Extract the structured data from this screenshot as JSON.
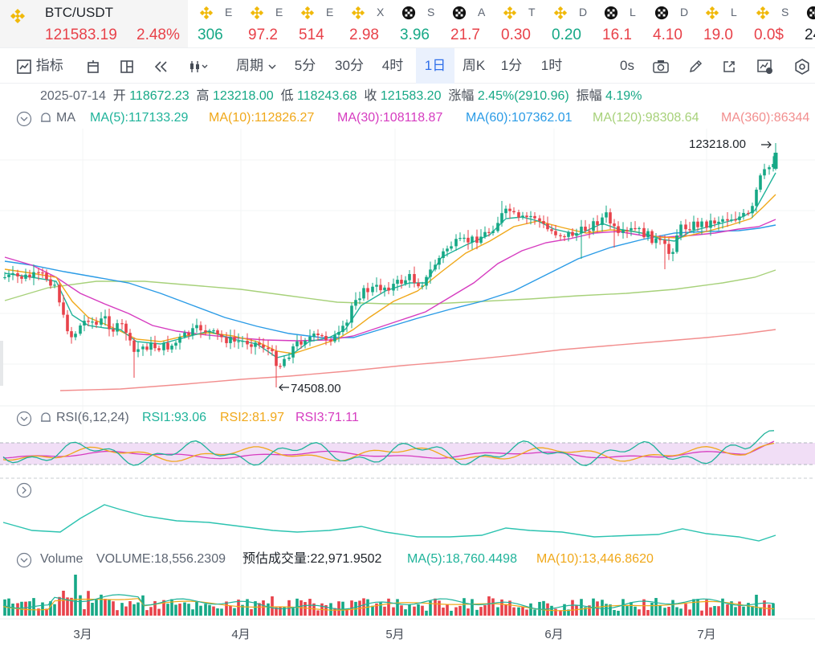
{
  "pair": {
    "name": "BTC/USDT",
    "price": "121583.19",
    "change": "2.48%"
  },
  "tickers": [
    {
      "icon": "bnb-icon",
      "sym": "E",
      "val": "306",
      "color": "up"
    },
    {
      "icon": "bnb-icon",
      "sym": "E",
      "val": "97.2",
      "color": "dn"
    },
    {
      "icon": "bnb-icon",
      "sym": "E",
      "val": "514",
      "color": "dn"
    },
    {
      "icon": "bnb-icon",
      "sym": "X",
      "val": "2.98",
      "color": "dn"
    },
    {
      "icon": "chip-icon",
      "sym": "S",
      "val": "3.96",
      "color": "up"
    },
    {
      "icon": "chip-icon",
      "sym": "A",
      "val": "21.7",
      "color": "dn"
    },
    {
      "icon": "bnb-icon",
      "sym": "T",
      "val": "0.30",
      "color": "dn"
    },
    {
      "icon": "bnb-icon",
      "sym": "D",
      "val": "0.20",
      "color": "up"
    },
    {
      "icon": "chip-icon",
      "sym": "L",
      "val": "16.1",
      "color": "dn"
    },
    {
      "icon": "chip-icon",
      "sym": "D",
      "val": "4.10",
      "color": "dn"
    },
    {
      "icon": "bnb-icon",
      "sym": "L",
      "val": "19.0",
      "color": "dn"
    },
    {
      "icon": "bnb-icon",
      "sym": "S",
      "val": "0.0$",
      "color": "dn"
    },
    {
      "icon": "chip-icon",
      "sym": "",
      "val": "24",
      "color": "blk"
    }
  ],
  "toolbar": {
    "indicator_label": "指标",
    "period_label": "周期",
    "intervals": [
      "5分",
      "30分",
      "4时",
      "1日",
      "周K",
      "1分",
      "1时"
    ],
    "active_interval": "1日",
    "countdown": "0s"
  },
  "ohlc": {
    "date": "2025-07-14",
    "open_label": "开",
    "open": "118672.23",
    "high_label": "高",
    "high": "123218.00",
    "low_label": "低",
    "low": "118243.68",
    "close_label": "收",
    "close": "121583.20",
    "change_label": "涨幅",
    "change": "2.45%(2910.96)",
    "amplitude_label": "振幅",
    "amplitude": "4.19%"
  },
  "ma": {
    "label": "MA",
    "items": [
      {
        "text": "MA(5):117133.29",
        "color": "#1fb39a"
      },
      {
        "text": "MA(10):112826.27",
        "color": "#f0a81a"
      },
      {
        "text": "MA(30):108118.87",
        "color": "#d63cc0"
      },
      {
        "text": "MA(60):107362.01",
        "color": "#2a9be6"
      },
      {
        "text": "MA(120):98308.64",
        "color": "#a7d17a"
      },
      {
        "text": "MA(360):86344",
        "color": "#f28e8e"
      }
    ]
  },
  "rsi": {
    "label": "RSI(6,12,24)",
    "rsi1": "RSI1:93.06",
    "rsi2": "RSI2:81.97",
    "rsi3": "RSI3:71.11",
    "colors": {
      "rsi1": "#1fb39a",
      "rsi2": "#f0a81a",
      "rsi3": "#d63cc0"
    }
  },
  "volume": {
    "label": "Volume",
    "volume": "VOLUME:18,556.2309",
    "estimate": "预估成交量:22,971.9502",
    "ma5": "MA(5):18,760.4498",
    "ma10": "MA(10):13,446.8620"
  },
  "chart_data": {
    "type": "candlestick",
    "x_axis_labels": [
      "3月",
      "4月",
      "5月",
      "6月",
      "7月"
    ],
    "high_marker": "123218.00",
    "low_marker": "74508.00",
    "y_range": [
      74508,
      123218
    ],
    "colors": {
      "up": "#16a886",
      "down": "#e8424a"
    }
  }
}
